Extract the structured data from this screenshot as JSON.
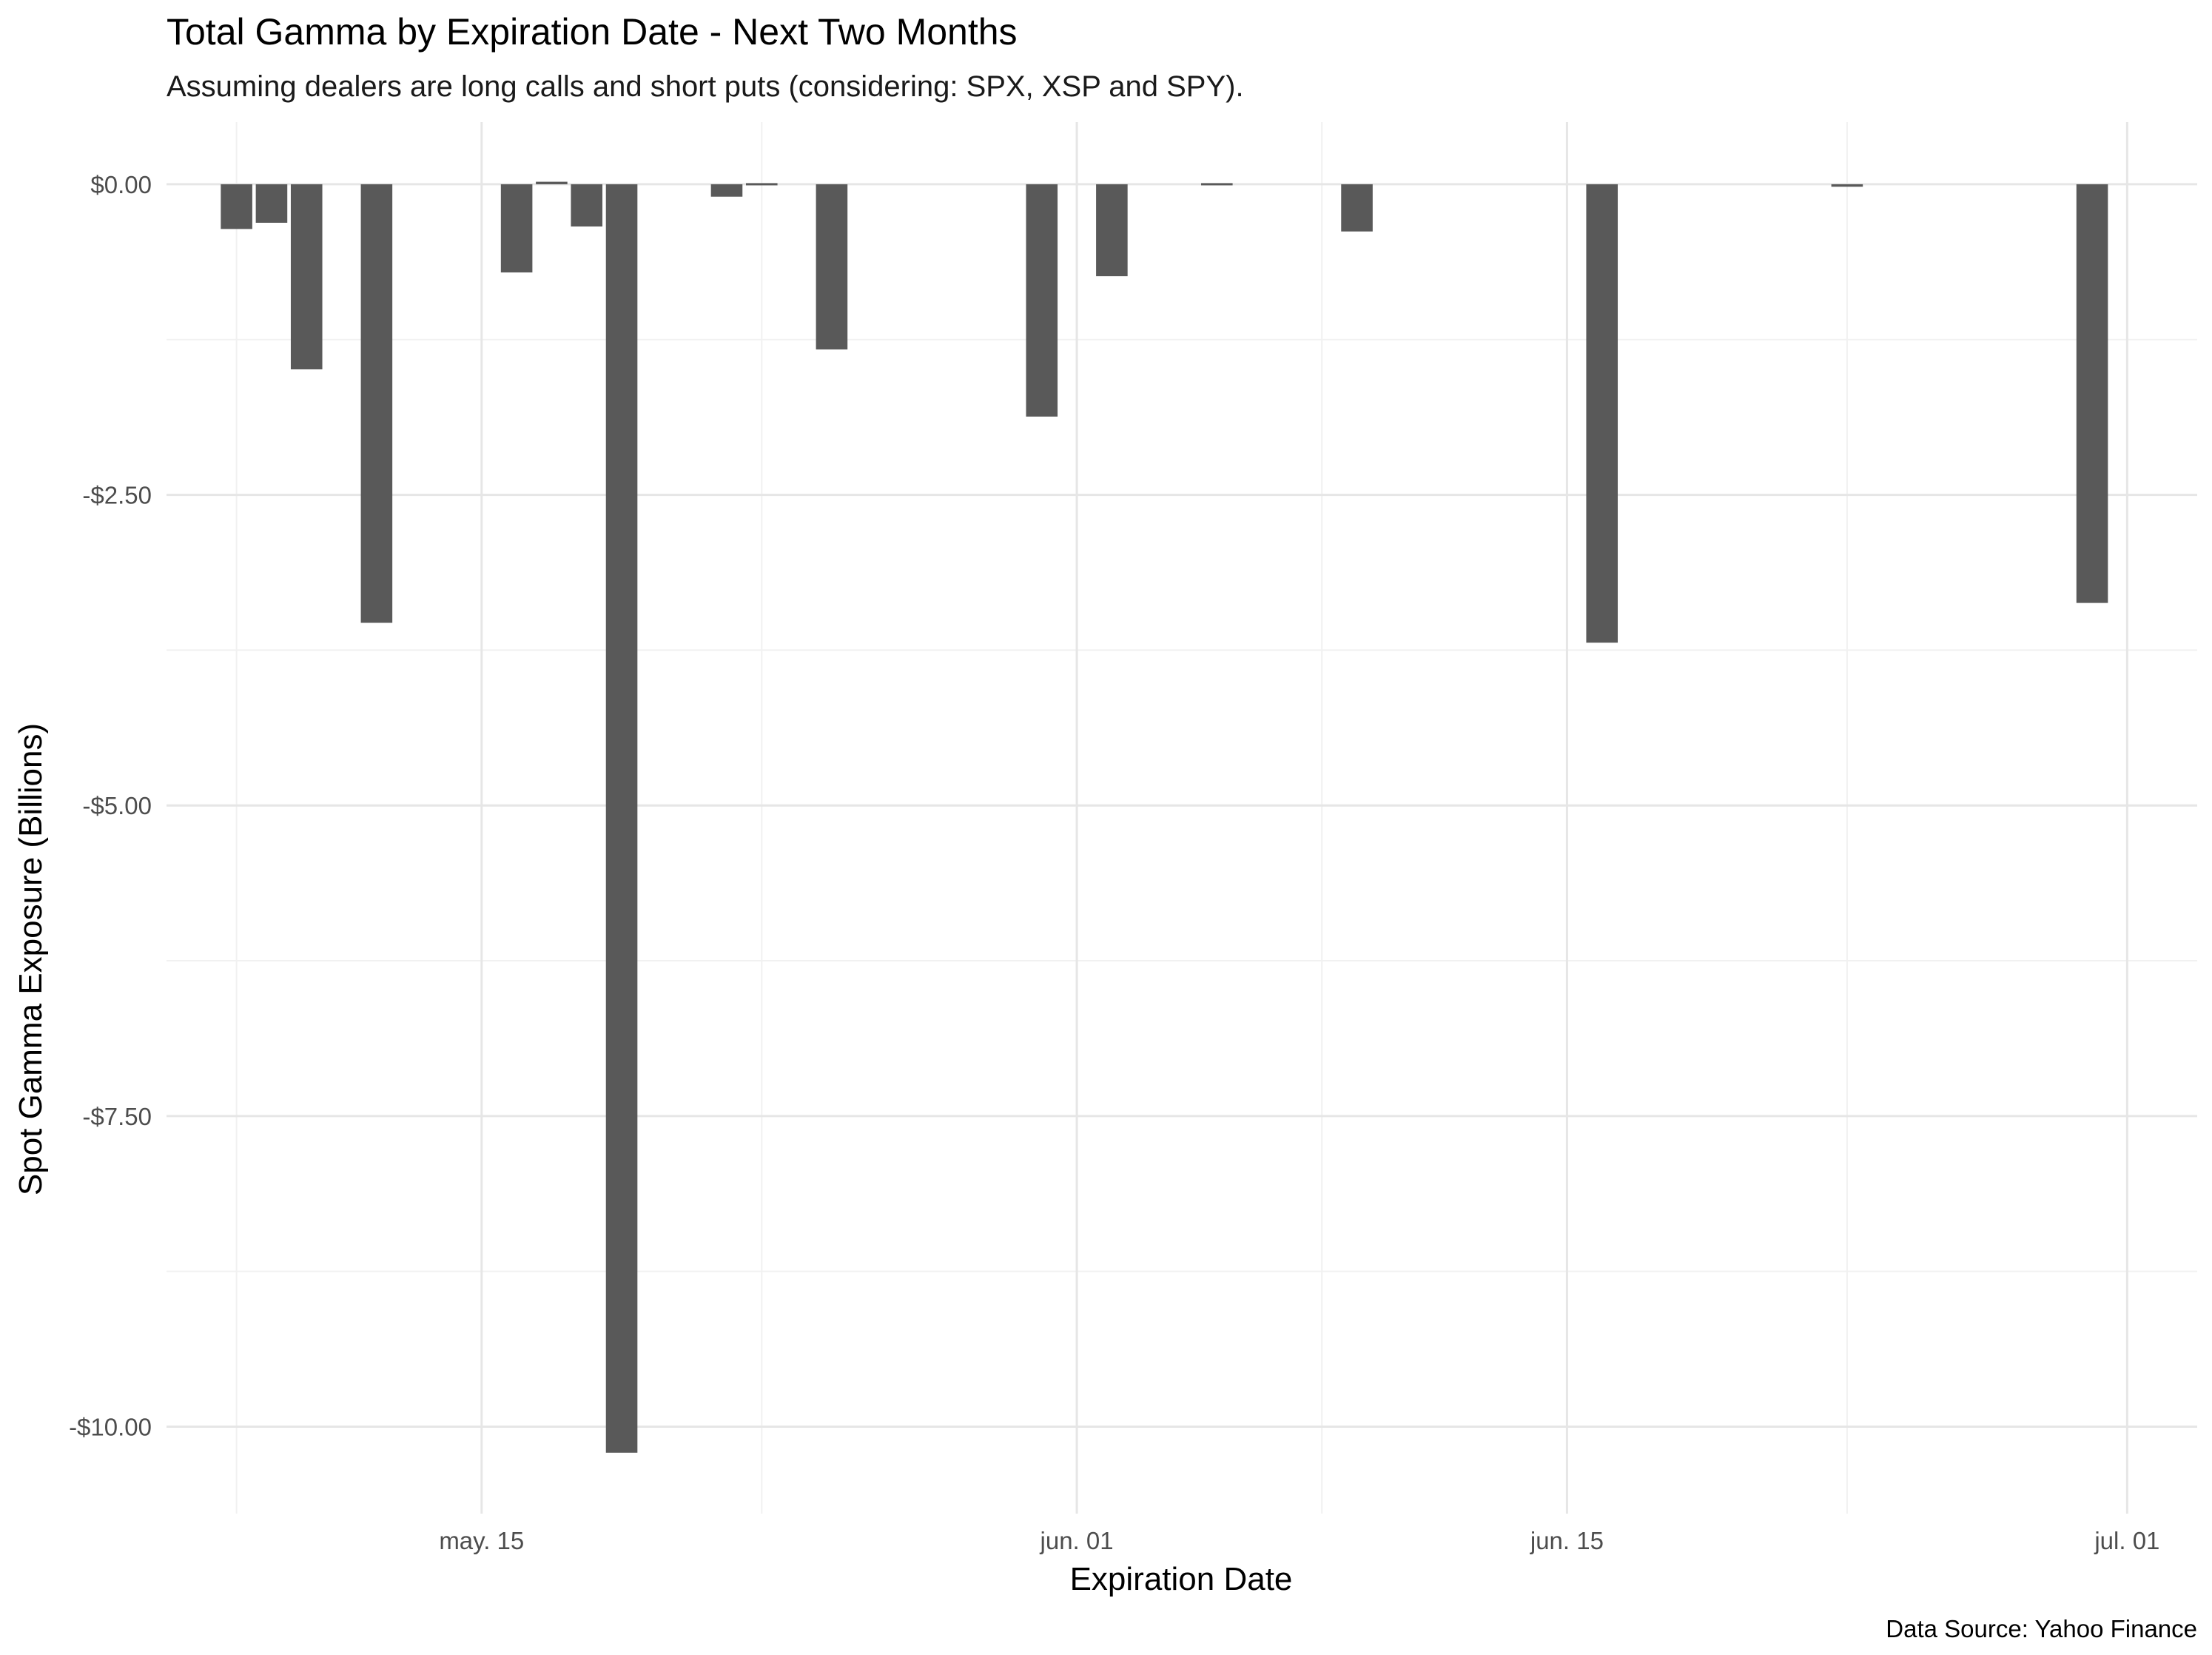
{
  "chart_data": {
    "type": "bar",
    "title": "Total Gamma by Expiration Date - Next Two Months",
    "subtitle": "Assuming dealers are long calls and short puts (considering: SPX, XSP and SPY).",
    "xlabel": "Expiration Date",
    "ylabel": "Spot Gamma Exposure (Billions)",
    "caption": "Data Source: Yahoo Finance",
    "x_ticks": [
      {
        "date": "2023-05-15",
        "label": "may. 15"
      },
      {
        "date": "2023-06-01",
        "label": "jun. 01"
      },
      {
        "date": "2023-06-15",
        "label": "jun. 15"
      },
      {
        "date": "2023-07-01",
        "label": "jul. 01"
      }
    ],
    "x_minor_dates": [
      "2023-05-08",
      "2023-05-23",
      "2023-06-08",
      "2023-06-23"
    ],
    "xlim": [
      "2023-05-06",
      "2023-07-03"
    ],
    "y_ticks": [
      {
        "value": 0,
        "label": "$0.00"
      },
      {
        "value": -2.5,
        "label": "-$2.50"
      },
      {
        "value": -5,
        "label": "-$5.00"
      },
      {
        "value": -7.5,
        "label": "-$7.50"
      },
      {
        "value": -10,
        "label": "-$10.00"
      }
    ],
    "ylim": [
      -10.7,
      0.5
    ],
    "grid": true,
    "bar_color": "#595959",
    "series": [
      {
        "values": [
          {
            "date": "2023-05-08",
            "value": -0.36
          },
          {
            "date": "2023-05-09",
            "value": -0.31
          },
          {
            "date": "2023-05-10",
            "value": -1.49
          },
          {
            "date": "2023-05-12",
            "value": -3.53
          },
          {
            "date": "2023-05-16",
            "value": -0.71
          },
          {
            "date": "2023-05-17",
            "value": 0.02
          },
          {
            "date": "2023-05-18",
            "value": -0.34
          },
          {
            "date": "2023-05-19",
            "value": -10.21
          },
          {
            "date": "2023-05-22",
            "value": -0.1
          },
          {
            "date": "2023-05-23",
            "value": -0.01
          },
          {
            "date": "2023-05-25",
            "value": -1.33
          },
          {
            "date": "2023-05-31",
            "value": -1.87
          },
          {
            "date": "2023-06-02",
            "value": -0.74
          },
          {
            "date": "2023-06-05",
            "value": -0.01
          },
          {
            "date": "2023-06-09",
            "value": -0.38
          },
          {
            "date": "2023-06-16",
            "value": -3.69
          },
          {
            "date": "2023-06-23",
            "value": -0.02
          },
          {
            "date": "2023-06-30",
            "value": -3.37
          }
        ]
      }
    ]
  }
}
